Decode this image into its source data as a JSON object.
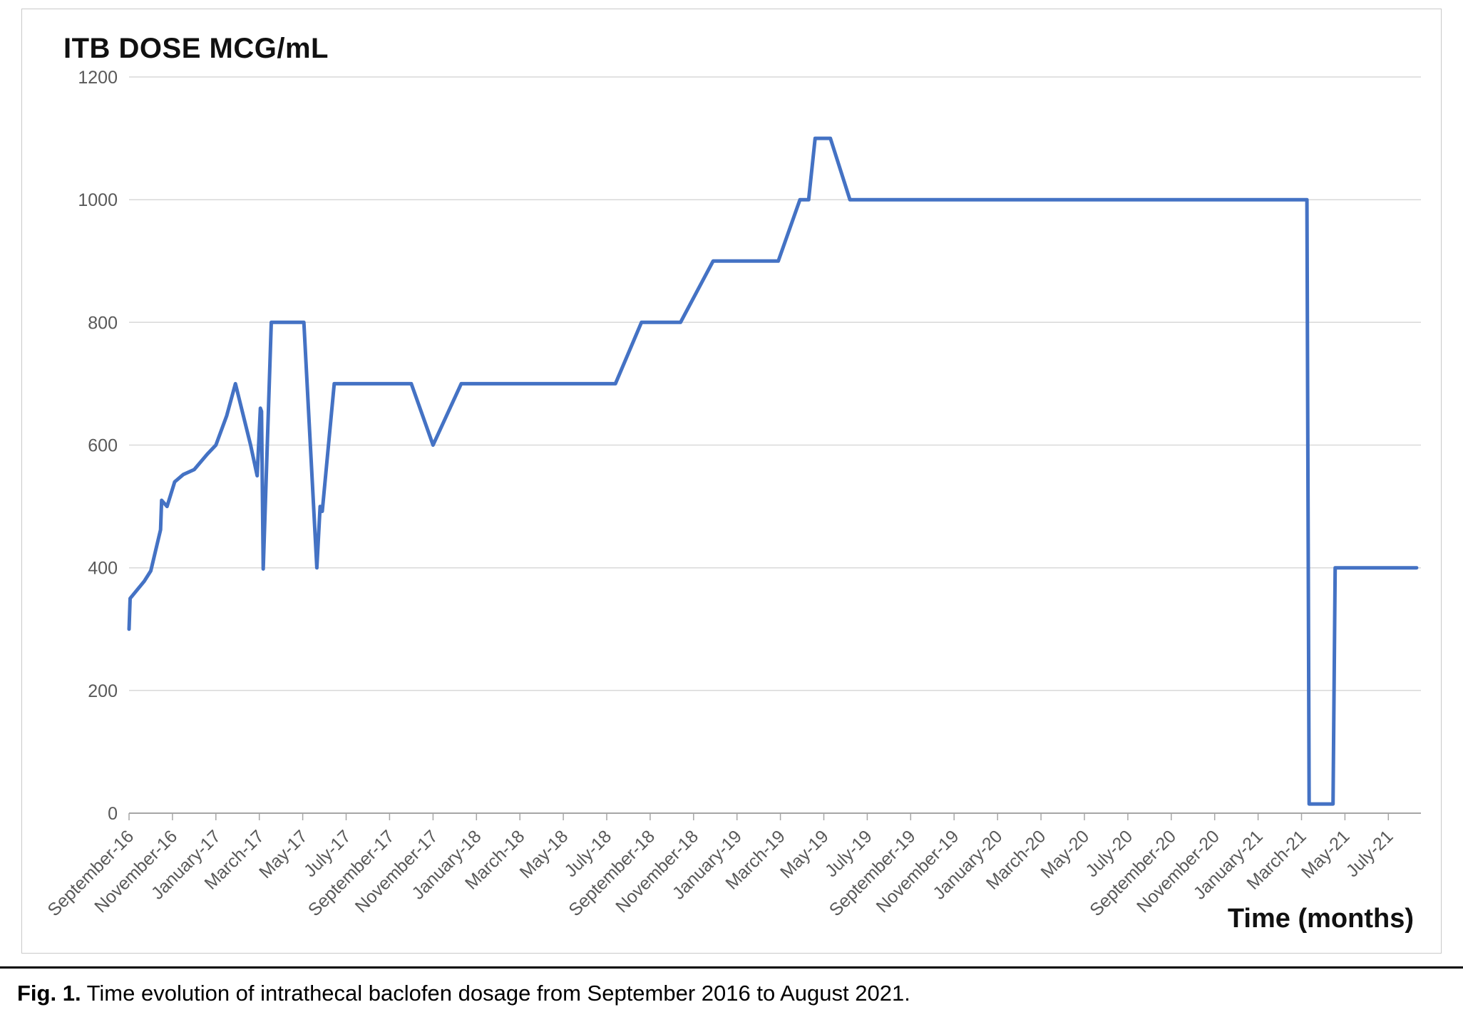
{
  "figure": {
    "caption_label": "Fig. 1.",
    "caption_text": " Time evolution of intrathecal baclofen dosage from September 2016 to August 2021."
  },
  "chart_data": {
    "type": "line",
    "title": "ITB DOSE MCG/mL",
    "xlabel": "Time (months)",
    "ylabel": "",
    "ylim": [
      0,
      1200
    ],
    "yticks": [
      0,
      200,
      400,
      600,
      800,
      1000,
      1200
    ],
    "x_unit": "months elapsed since September 2016 (0 = September-16)",
    "xtick_positions": [
      0,
      2,
      4,
      6,
      8,
      10,
      12,
      14,
      16,
      18,
      20,
      22,
      24,
      26,
      28,
      30,
      32,
      34,
      36,
      38,
      40,
      42,
      44,
      46,
      48,
      50,
      52,
      54,
      56,
      58
    ],
    "xtick_labels": [
      "September-16",
      "November-16",
      "January-17",
      "March-17",
      "May-17",
      "July-17",
      "September-17",
      "November-17",
      "January-18",
      "March-18",
      "May-18",
      "July-18",
      "September-18",
      "November-18",
      "January-19",
      "March-19",
      "May-19",
      "July-19",
      "September-19",
      "November-19",
      "January-20",
      "March-20",
      "May-20",
      "July-20",
      "September-20",
      "November-20",
      "January-21",
      "March-21",
      "May-21",
      "July-21"
    ],
    "grid": "horizontal",
    "legend": "none",
    "grid_color": "#d9d9d9",
    "axis_color": "#a6a6a6",
    "tick_text_color": "#595959",
    "series": [
      {
        "name": "ITB dose (mcg/mL)",
        "color": "#4472C4",
        "points": [
          [
            0.0,
            300
          ],
          [
            0.05,
            350
          ],
          [
            0.7,
            378
          ],
          [
            1.0,
            395
          ],
          [
            1.45,
            462
          ],
          [
            1.5,
            510
          ],
          [
            1.75,
            500
          ],
          [
            2.1,
            540
          ],
          [
            2.5,
            552
          ],
          [
            3.0,
            560
          ],
          [
            3.6,
            585
          ],
          [
            4.0,
            600
          ],
          [
            4.5,
            648
          ],
          [
            4.9,
            700
          ],
          [
            5.6,
            600
          ],
          [
            5.9,
            550
          ],
          [
            6.05,
            660
          ],
          [
            6.1,
            655
          ],
          [
            6.18,
            398
          ],
          [
            6.55,
            800
          ],
          [
            8.05,
            800
          ],
          [
            8.65,
            400
          ],
          [
            8.8,
            500
          ],
          [
            8.9,
            492
          ],
          [
            9.45,
            700
          ],
          [
            13.0,
            700
          ],
          [
            14.0,
            600
          ],
          [
            15.3,
            700
          ],
          [
            22.4,
            700
          ],
          [
            23.6,
            800
          ],
          [
            25.4,
            800
          ],
          [
            26.9,
            900
          ],
          [
            29.9,
            900
          ],
          [
            30.9,
            1000
          ],
          [
            31.3,
            1000
          ],
          [
            31.6,
            1100
          ],
          [
            32.3,
            1100
          ],
          [
            33.2,
            1000
          ],
          [
            54.25,
            1000
          ],
          [
            54.35,
            15
          ],
          [
            55.45,
            15
          ],
          [
            55.55,
            400
          ],
          [
            59.3,
            400
          ]
        ]
      }
    ]
  }
}
